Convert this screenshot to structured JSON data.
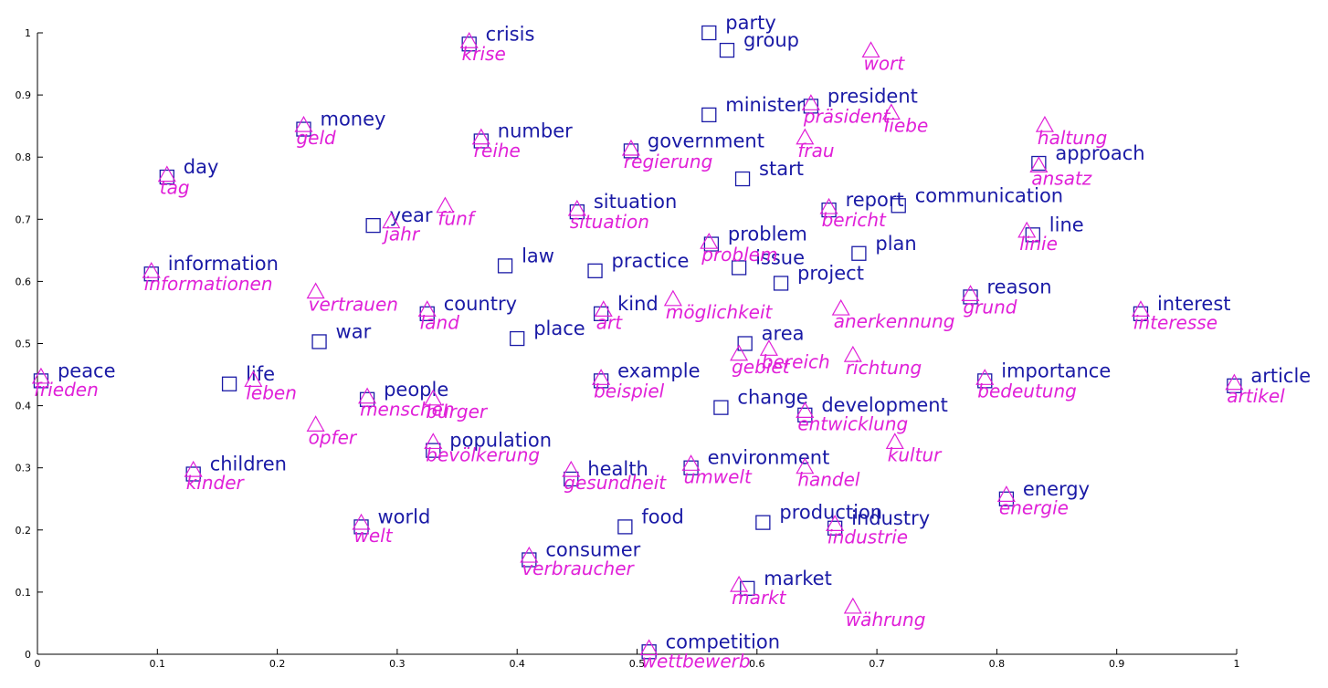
{
  "chart_data": {
    "type": "scatter",
    "title": "",
    "xlabel": "",
    "ylabel": "",
    "xlim": [
      0,
      1
    ],
    "ylim": [
      0,
      1
    ],
    "grid": false,
    "legend": "none",
    "x_ticks": [
      "0",
      "0.1",
      "0.2",
      "0.3",
      "0.4",
      "0.5",
      "0.6",
      "0.7",
      "0.8",
      "0.9",
      "1"
    ],
    "y_ticks": [
      "0",
      "0.1",
      "0.2",
      "0.3",
      "0.4",
      "0.5",
      "0.6",
      "0.7",
      "0.8",
      "0.9",
      "1"
    ],
    "colors": {
      "english": "#1a1aa6",
      "german": "#e020d8"
    },
    "series": [
      {
        "marker": "square",
        "points": [
          {
            "label": "party",
            "x": 0.56,
            "y": 1.0
          },
          {
            "label": "group",
            "x": 0.575,
            "y": 0.972
          },
          {
            "label": "crisis",
            "x": 0.36,
            "y": 0.982
          },
          {
            "label": "minister",
            "x": 0.56,
            "y": 0.868
          },
          {
            "label": "president",
            "x": 0.645,
            "y": 0.882
          },
          {
            "label": "money",
            "x": 0.222,
            "y": 0.845
          },
          {
            "label": "number",
            "x": 0.37,
            "y": 0.826
          },
          {
            "label": "government",
            "x": 0.495,
            "y": 0.81
          },
          {
            "label": "approach",
            "x": 0.835,
            "y": 0.79
          },
          {
            "label": "day",
            "x": 0.108,
            "y": 0.768
          },
          {
            "label": "start",
            "x": 0.588,
            "y": 0.765
          },
          {
            "label": "situation",
            "x": 0.45,
            "y": 0.712
          },
          {
            "label": "report",
            "x": 0.66,
            "y": 0.715
          },
          {
            "label": "communication",
            "x": 0.718,
            "y": 0.722
          },
          {
            "label": "year",
            "x": 0.28,
            "y": 0.69
          },
          {
            "label": "line",
            "x": 0.83,
            "y": 0.675
          },
          {
            "label": "problem",
            "x": 0.562,
            "y": 0.66
          },
          {
            "label": "plan",
            "x": 0.685,
            "y": 0.645
          },
          {
            "label": "law",
            "x": 0.39,
            "y": 0.625
          },
          {
            "label": "issue",
            "x": 0.585,
            "y": 0.622
          },
          {
            "label": "practice",
            "x": 0.465,
            "y": 0.617
          },
          {
            "label": "information",
            "x": 0.095,
            "y": 0.612
          },
          {
            "label": "project",
            "x": 0.62,
            "y": 0.597
          },
          {
            "label": "reason",
            "x": 0.778,
            "y": 0.575
          },
          {
            "label": "country",
            "x": 0.325,
            "y": 0.548
          },
          {
            "label": "kind",
            "x": 0.47,
            "y": 0.548
          },
          {
            "label": "interest",
            "x": 0.92,
            "y": 0.548
          },
          {
            "label": "war",
            "x": 0.235,
            "y": 0.503
          },
          {
            "label": "place",
            "x": 0.4,
            "y": 0.508
          },
          {
            "label": "area",
            "x": 0.59,
            "y": 0.5
          },
          {
            "label": "peace",
            "x": 0.003,
            "y": 0.44
          },
          {
            "label": "life",
            "x": 0.16,
            "y": 0.435
          },
          {
            "label": "example",
            "x": 0.47,
            "y": 0.44
          },
          {
            "label": "importance",
            "x": 0.79,
            "y": 0.44
          },
          {
            "label": "article",
            "x": 0.998,
            "y": 0.432
          },
          {
            "label": "people",
            "x": 0.275,
            "y": 0.41
          },
          {
            "label": "change",
            "x": 0.57,
            "y": 0.397
          },
          {
            "label": "development",
            "x": 0.64,
            "y": 0.385
          },
          {
            "label": "population",
            "x": 0.33,
            "y": 0.328
          },
          {
            "label": "environment",
            "x": 0.545,
            "y": 0.3
          },
          {
            "label": "health",
            "x": 0.445,
            "y": 0.282
          },
          {
            "label": "children",
            "x": 0.13,
            "y": 0.29
          },
          {
            "label": "energy",
            "x": 0.808,
            "y": 0.25
          },
          {
            "label": "world",
            "x": 0.27,
            "y": 0.205
          },
          {
            "label": "food",
            "x": 0.49,
            "y": 0.205
          },
          {
            "label": "production",
            "x": 0.605,
            "y": 0.212
          },
          {
            "label": "industry",
            "x": 0.665,
            "y": 0.203
          },
          {
            "label": "consumer",
            "x": 0.41,
            "y": 0.152
          },
          {
            "label": "market",
            "x": 0.592,
            "y": 0.106
          },
          {
            "label": "competition",
            "x": 0.51,
            "y": 0.004
          }
        ]
      },
      {
        "marker": "triangle",
        "points": [
          {
            "label": "krise",
            "x": 0.36,
            "y": 0.985
          },
          {
            "label": "wort",
            "x": 0.695,
            "y": 0.97
          },
          {
            "label": "präsident",
            "x": 0.645,
            "y": 0.885
          },
          {
            "label": "liebe",
            "x": 0.712,
            "y": 0.87
          },
          {
            "label": "geld",
            "x": 0.222,
            "y": 0.85
          },
          {
            "label": "reihe",
            "x": 0.37,
            "y": 0.83
          },
          {
            "label": "haltung",
            "x": 0.84,
            "y": 0.85
          },
          {
            "label": "regierung",
            "x": 0.495,
            "y": 0.812
          },
          {
            "label": "frau",
            "x": 0.64,
            "y": 0.83
          },
          {
            "label": "ansatz",
            "x": 0.835,
            "y": 0.785
          },
          {
            "label": "tag",
            "x": 0.108,
            "y": 0.77
          },
          {
            "label": "fünf",
            "x": 0.34,
            "y": 0.72
          },
          {
            "label": "jahr",
            "x": 0.295,
            "y": 0.695
          },
          {
            "label": "bericht",
            "x": 0.66,
            "y": 0.718
          },
          {
            "label": "situation",
            "x": 0.45,
            "y": 0.715
          },
          {
            "label": "linie",
            "x": 0.825,
            "y": 0.68
          },
          {
            "label": "problem",
            "x": 0.56,
            "y": 0.662
          },
          {
            "label": "informationen",
            "x": 0.095,
            "y": 0.615
          },
          {
            "label": "vertrauen",
            "x": 0.232,
            "y": 0.582
          },
          {
            "label": "grund",
            "x": 0.778,
            "y": 0.578
          },
          {
            "label": "möglichkeit",
            "x": 0.53,
            "y": 0.57
          },
          {
            "label": "anerkennung",
            "x": 0.67,
            "y": 0.555
          },
          {
            "label": "land",
            "x": 0.325,
            "y": 0.553
          },
          {
            "label": "art",
            "x": 0.472,
            "y": 0.553
          },
          {
            "label": "interesse",
            "x": 0.92,
            "y": 0.553
          },
          {
            "label": "gebiet",
            "x": 0.585,
            "y": 0.482
          },
          {
            "label": "bereich",
            "x": 0.61,
            "y": 0.49
          },
          {
            "label": "richtung",
            "x": 0.68,
            "y": 0.48
          },
          {
            "label": "frieden",
            "x": 0.003,
            "y": 0.445
          },
          {
            "label": "leben",
            "x": 0.18,
            "y": 0.44
          },
          {
            "label": "beispiel",
            "x": 0.47,
            "y": 0.443
          },
          {
            "label": "bedeutung",
            "x": 0.79,
            "y": 0.443
          },
          {
            "label": "artikel",
            "x": 0.998,
            "y": 0.435
          },
          {
            "label": "menschen",
            "x": 0.275,
            "y": 0.413
          },
          {
            "label": "bürger",
            "x": 0.33,
            "y": 0.41
          },
          {
            "label": "entwicklung",
            "x": 0.64,
            "y": 0.39
          },
          {
            "label": "opfer",
            "x": 0.232,
            "y": 0.368
          },
          {
            "label": "bevölkerung",
            "x": 0.33,
            "y": 0.34
          },
          {
            "label": "kultur",
            "x": 0.715,
            "y": 0.34
          },
          {
            "label": "umwelt",
            "x": 0.545,
            "y": 0.305
          },
          {
            "label": "handel",
            "x": 0.64,
            "y": 0.3
          },
          {
            "label": "gesundheit",
            "x": 0.445,
            "y": 0.295
          },
          {
            "label": "kinder",
            "x": 0.13,
            "y": 0.295
          },
          {
            "label": "energie",
            "x": 0.808,
            "y": 0.255
          },
          {
            "label": "welt",
            "x": 0.27,
            "y": 0.21
          },
          {
            "label": "industrie",
            "x": 0.665,
            "y": 0.208
          },
          {
            "label": "verbraucher",
            "x": 0.41,
            "y": 0.157
          },
          {
            "label": "markt",
            "x": 0.585,
            "y": 0.11
          },
          {
            "label": "währung",
            "x": 0.68,
            "y": 0.075
          },
          {
            "label": "wettbewerb",
            "x": 0.51,
            "y": 0.008
          }
        ]
      }
    ]
  }
}
